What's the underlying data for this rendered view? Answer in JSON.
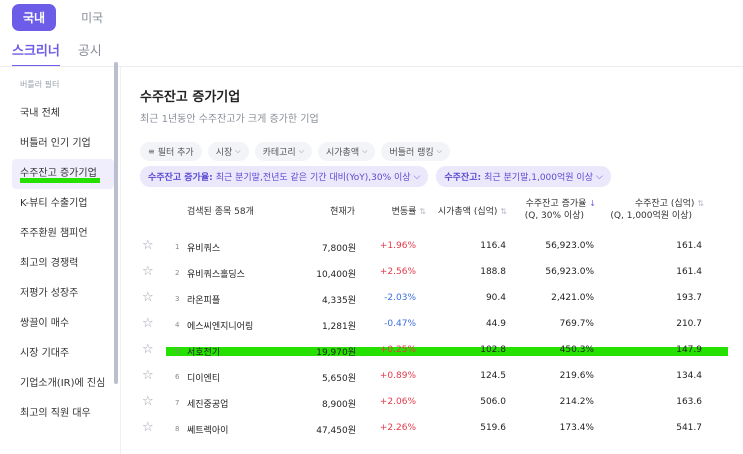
{
  "market_tabs": [
    {
      "label": "국내",
      "active": true
    },
    {
      "label": "미국",
      "active": false
    }
  ],
  "main_tabs": [
    {
      "label": "스크리너",
      "active": true
    },
    {
      "label": "공시",
      "active": false
    }
  ],
  "sidebar": {
    "section_label": "버틀러 필터",
    "items": [
      {
        "label": "국내 전체"
      },
      {
        "label": "버틀러 인기 기업"
      },
      {
        "label": "수주잔고 증가기업",
        "active": true
      },
      {
        "label": "K-뷰티 수출기업"
      },
      {
        "label": "주주환원 챔피언"
      },
      {
        "label": "최고의 경쟁력"
      },
      {
        "label": "저평가 성장주"
      },
      {
        "label": "쌍끌이 매수"
      },
      {
        "label": "시장 기대주"
      },
      {
        "label": "기업소개(IR)에 진심"
      },
      {
        "label": "최고의 직원 대우"
      }
    ]
  },
  "page": {
    "title": "수주잔고 증가기업",
    "subtitle": "최근 1년동안 수주잔고가 크게 증가한 기업"
  },
  "filters": {
    "add_label": "필터 추가",
    "chips": [
      {
        "label": "시장"
      },
      {
        "label": "카테고리"
      },
      {
        "label": "시가총액"
      },
      {
        "label": "버틀러 랭킹"
      }
    ],
    "active": [
      {
        "key": "수주잔고 증가율:",
        "value": "최근 분기말,전년도 같은 기간 대비(YoY),30% 이상"
      },
      {
        "key": "수주잔고:",
        "value": "최근 분기말,1,000억원 이상"
      }
    ]
  },
  "table": {
    "headers": {
      "count": "검색된 종목 58개",
      "price": "현재가",
      "change": "변동률",
      "mcap": "시가총액 (십억)",
      "growth_line1": "수주잔고 증가율",
      "growth_line2": "(Q, 30% 이상)",
      "backlog_line1": "수주잔고 (십억)",
      "backlog_line2": "(Q, 1,000억원 이상)"
    },
    "rows": [
      {
        "rank": "1",
        "name": "유비쿼스",
        "price": "7,800원",
        "change": "+1.96%",
        "dir": "up",
        "mcap": "116.4",
        "growth": "56,923.0%",
        "backlog": "161.4"
      },
      {
        "rank": "2",
        "name": "유비쿼스홀딩스",
        "price": "10,400원",
        "change": "+2.56%",
        "dir": "up",
        "mcap": "188.8",
        "growth": "56,923.0%",
        "backlog": "161.4"
      },
      {
        "rank": "3",
        "name": "라온피플",
        "price": "4,335원",
        "change": "-2.03%",
        "dir": "down",
        "mcap": "90.4",
        "growth": "2,421.0%",
        "backlog": "193.7"
      },
      {
        "rank": "4",
        "name": "에스씨엔지니어링",
        "price": "1,281원",
        "change": "-0.47%",
        "dir": "down",
        "mcap": "44.9",
        "growth": "769.7%",
        "backlog": "210.7"
      },
      {
        "rank": "5",
        "name": "서호전기",
        "price": "19,970원",
        "change": "+0.25%",
        "dir": "up",
        "mcap": "102.8",
        "growth": "450.3%",
        "backlog": "147.9",
        "highlight": true
      },
      {
        "rank": "6",
        "name": "디이엔티",
        "price": "5,650원",
        "change": "+0.89%",
        "dir": "up",
        "mcap": "124.5",
        "growth": "219.6%",
        "backlog": "134.4"
      },
      {
        "rank": "7",
        "name": "세진중공업",
        "price": "8,900원",
        "change": "+2.06%",
        "dir": "up",
        "mcap": "506.0",
        "growth": "214.2%",
        "backlog": "163.6"
      },
      {
        "rank": "8",
        "name": "쎄트렉아이",
        "price": "47,450원",
        "change": "+2.26%",
        "dir": "up",
        "mcap": "519.6",
        "growth": "173.4%",
        "backlog": "541.7"
      }
    ]
  }
}
